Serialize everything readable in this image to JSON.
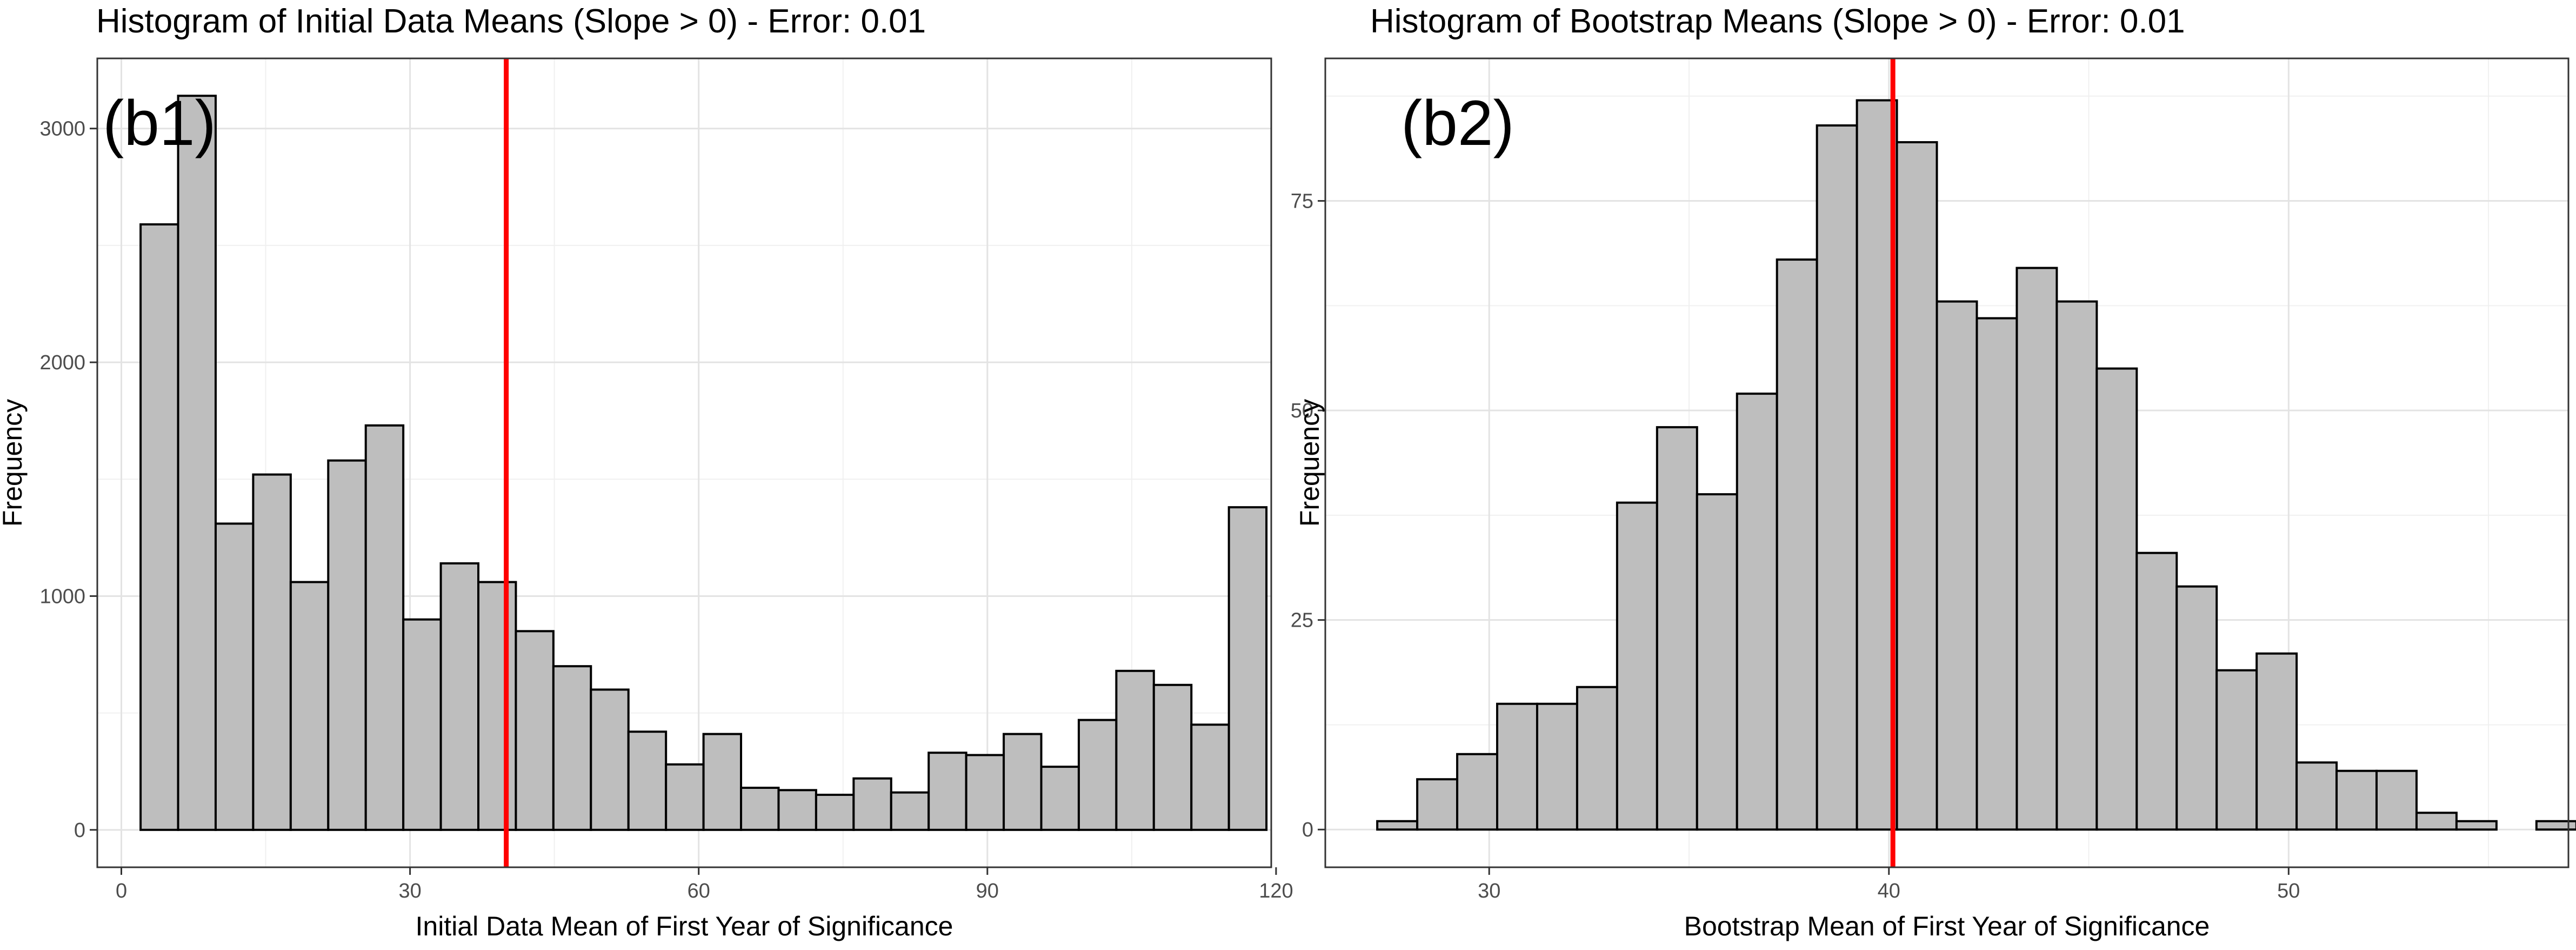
{
  "chart_data": [
    {
      "type": "bar",
      "panel_label": "(b1)",
      "title": "Histogram of Initial Data Means (Slope > 0) - Error: 0.01",
      "xlabel": "Initial Data Mean of First Year of Significance",
      "ylabel": "Frequency",
      "xlim": [
        -2.5,
        119.5
      ],
      "ylim": [
        -160,
        3300
      ],
      "xticks": [
        0,
        30,
        60,
        90,
        120
      ],
      "yticks": [
        0,
        1000,
        2000,
        3000
      ],
      "grid": true,
      "bin_width": 3.9,
      "bin_start": 2.0,
      "values": [
        2590,
        3140,
        1310,
        1520,
        1060,
        1580,
        1730,
        900,
        1140,
        1060,
        850,
        700,
        600,
        420,
        280,
        410,
        180,
        170,
        150,
        220,
        160,
        330,
        320,
        410,
        270,
        470,
        680,
        620,
        450,
        1380
      ],
      "reference_line": {
        "x": 40,
        "color": "#ff0000"
      },
      "bar_fill": "#bebebe",
      "bar_stroke": "#000000"
    },
    {
      "type": "bar",
      "panel_label": "(b2)",
      "title": "Histogram of Bootstrap Means (Slope > 0) - Error: 0.01",
      "xlabel": "Bootstrap Mean of First Year of Significance",
      "ylabel": "Frequency",
      "xlim": [
        25.9,
        57.0
      ],
      "ylim": [
        -4.5,
        92
      ],
      "xticks": [
        30,
        40,
        50
      ],
      "yticks": [
        0,
        25,
        50,
        75
      ],
      "grid": true,
      "bin_width": 1.0,
      "bin_start": 27.2,
      "values": [
        1,
        6,
        9,
        15,
        15,
        17,
        39,
        48,
        40,
        52,
        68,
        84,
        87,
        82,
        63,
        61,
        67,
        63,
        55,
        33,
        29,
        19,
        21,
        8,
        7,
        7,
        2,
        1,
        0,
        1
      ],
      "reference_line": {
        "x": 40.1,
        "color": "#ff0000"
      },
      "bar_fill": "#bebebe",
      "bar_stroke": "#000000"
    }
  ]
}
